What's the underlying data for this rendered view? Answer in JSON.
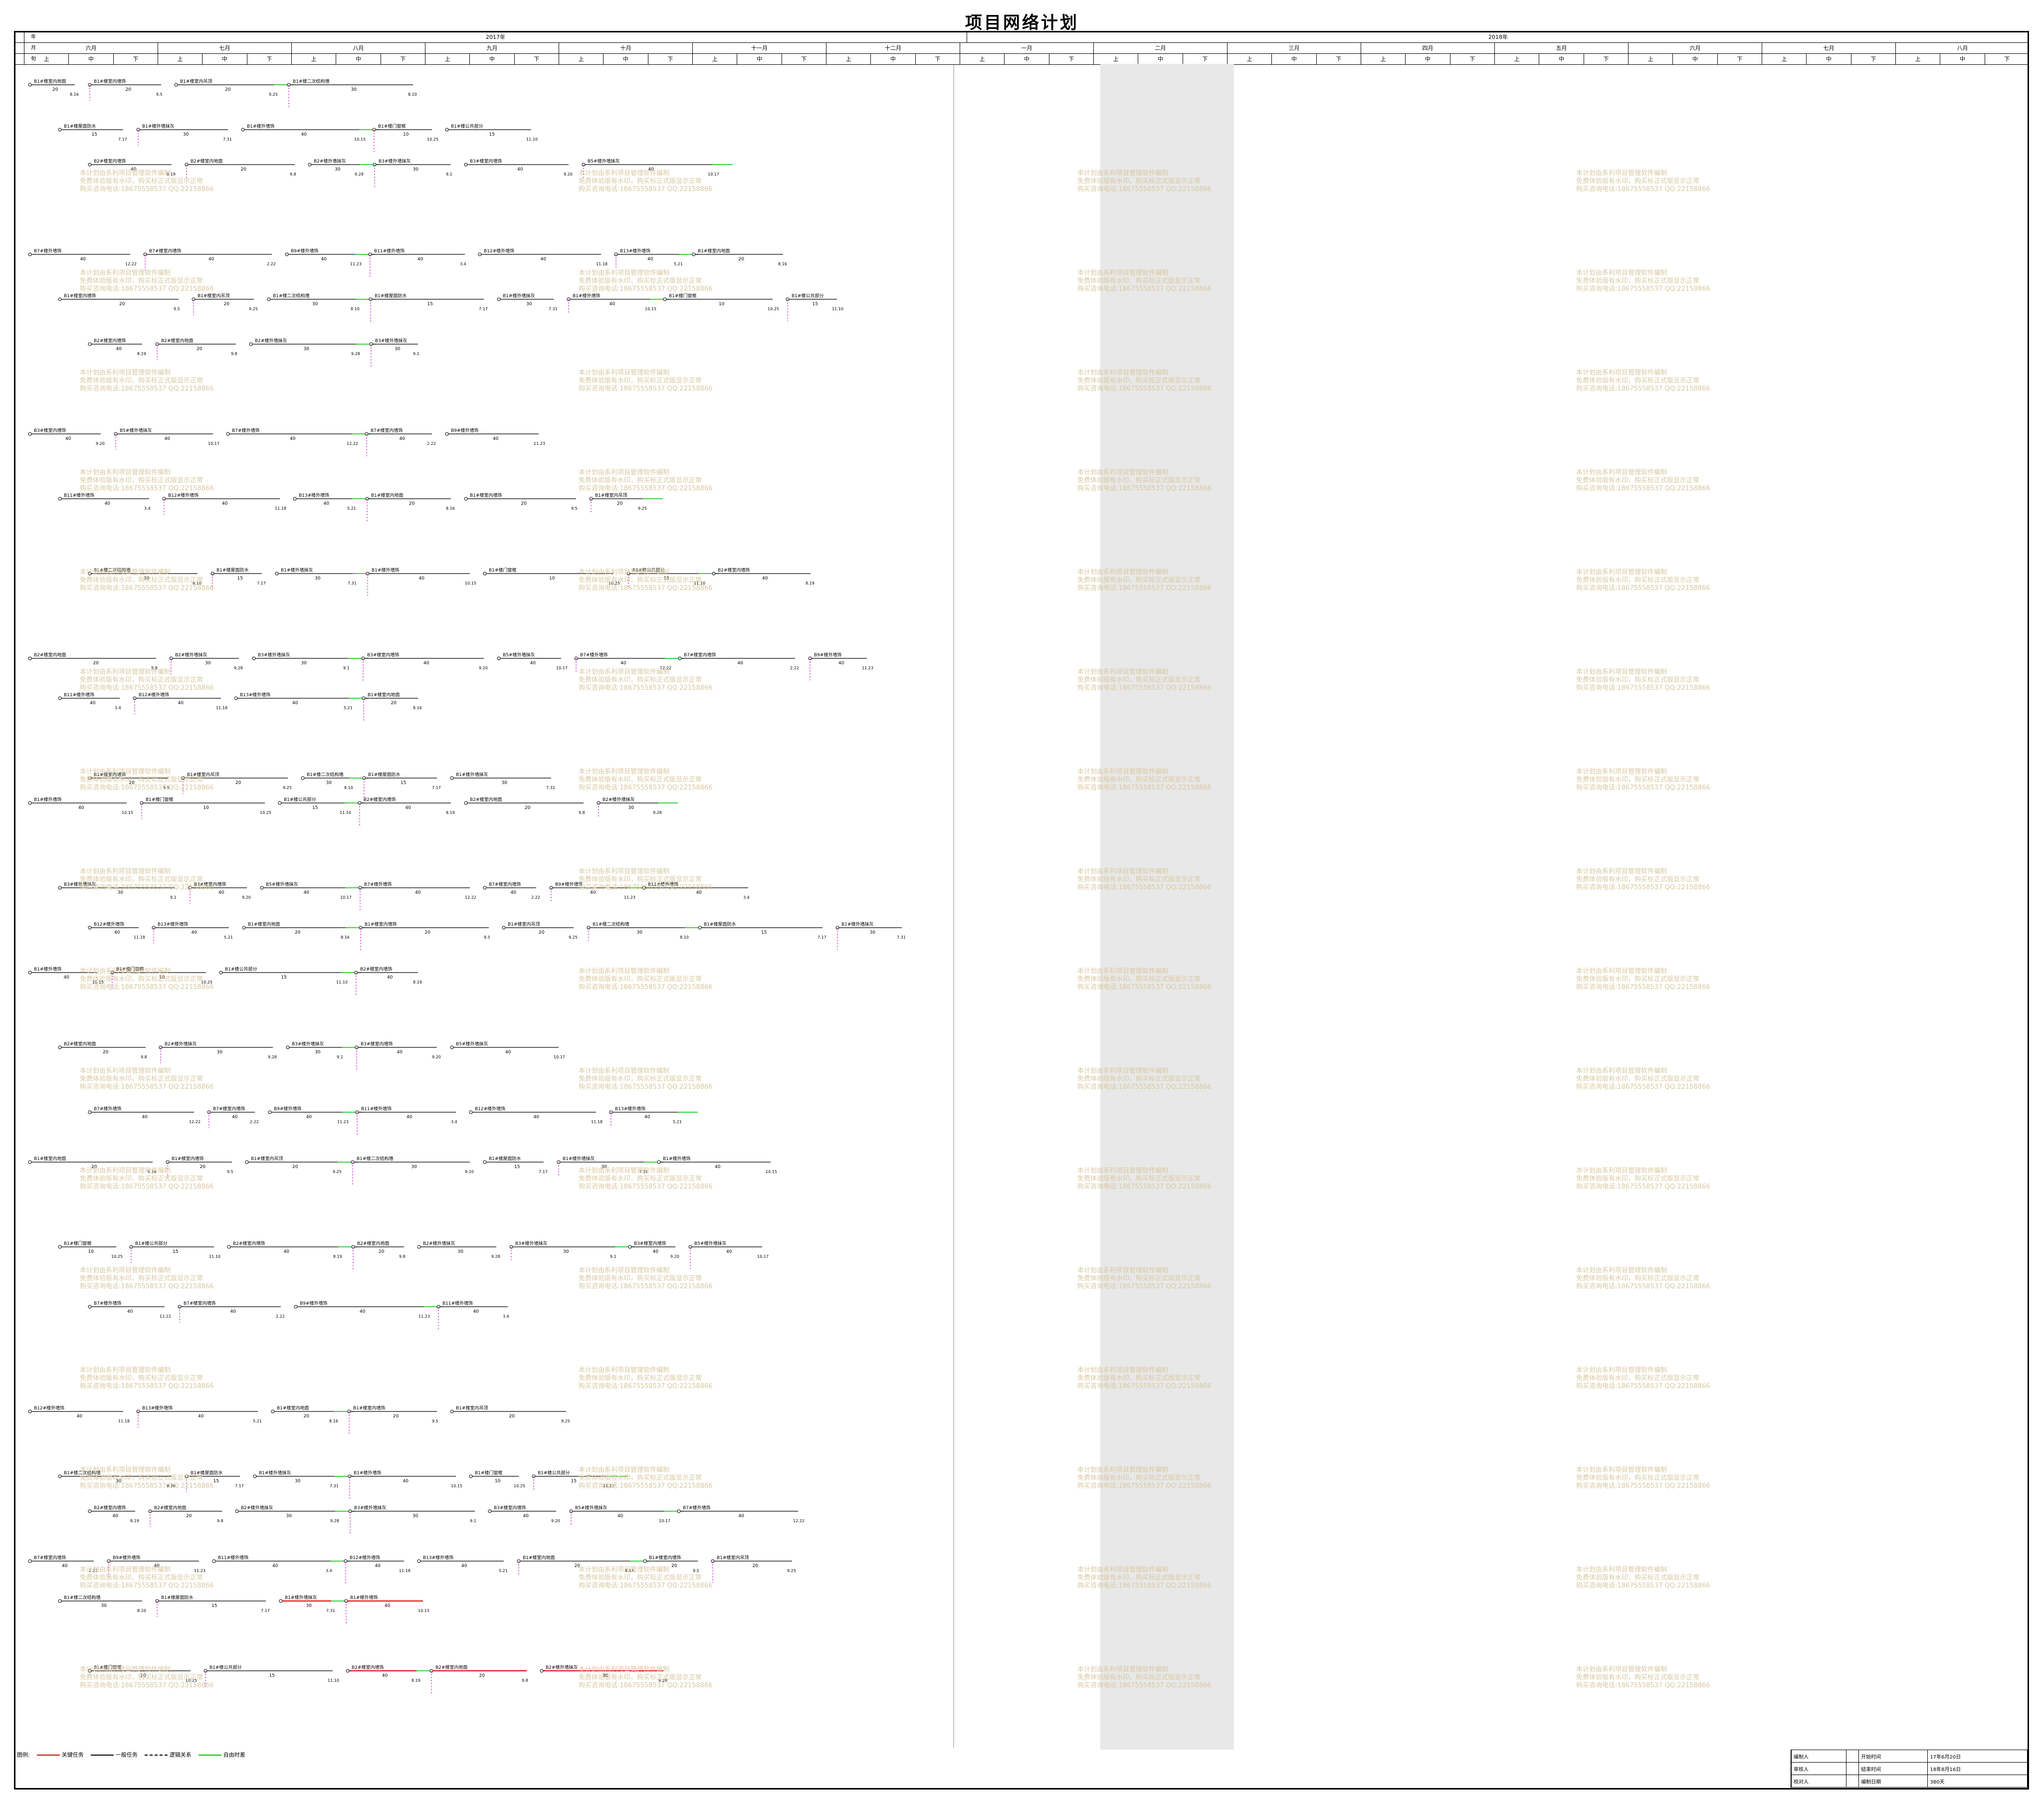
{
  "title": "项目网络计划",
  "header": {
    "row_labels": [
      "年",
      "月",
      "旬"
    ],
    "years": [
      "2017年",
      "2018年"
    ],
    "months": [
      "六月",
      "七月",
      "八月",
      "九月",
      "十月",
      "十一月",
      "十二月",
      "一月",
      "二月",
      "三月",
      "四月",
      "五月",
      "六月",
      "七月",
      "八月"
    ],
    "dekads": [
      "上",
      "中",
      "下"
    ]
  },
  "legend": {
    "title": "图例:",
    "items": [
      {
        "label": "关键任务",
        "color": "#e00000"
      },
      {
        "label": "一般任务",
        "color": "#000000"
      },
      {
        "label": "逻辑关系",
        "color": "#000000"
      },
      {
        "label": "自由时差",
        "color": "#00c000"
      }
    ]
  },
  "info": {
    "rows": [
      [
        "编制人",
        "",
        "开始时间",
        "17年6月20日"
      ],
      [
        "审核人",
        "",
        "结束时间",
        "18年8月16日"
      ],
      [
        "校对人",
        "",
        "编制日期",
        "380天"
      ]
    ]
  },
  "watermark": [
    "本计划由系利项目管理软件编制",
    "免费体验版有水印，购买标正式版显示正常",
    "购买咨询电话:18675558537 QQ:22158866"
  ],
  "chart_data": {
    "type": "network",
    "tasks": [
      {
        "name": "B1#楼室内地面",
        "duration": 20,
        "date": "8.16"
      },
      {
        "name": "B1#楼室内墙饰",
        "duration": 20,
        "date": "9.5"
      },
      {
        "name": "B1#楼室内吊顶",
        "duration": 20,
        "date": "9.25"
      },
      {
        "name": "B1#楼二次结构墙",
        "duration": 30,
        "date": "8.10"
      },
      {
        "name": "B1#楼屋面防水",
        "duration": 15,
        "date": "7.17"
      },
      {
        "name": "B1#楼外墙抹灰",
        "duration": 30,
        "date": "7.31"
      },
      {
        "name": "B1#楼外墙饰",
        "duration": 40,
        "date": "10.15"
      },
      {
        "name": "B1#楼门窗框",
        "duration": 10,
        "date": "10.25"
      },
      {
        "name": "B1#楼公共部分",
        "duration": 15,
        "date": "11.10"
      },
      {
        "name": "B2#楼室内墙饰",
        "duration": 40,
        "date": "8.19"
      },
      {
        "name": "B2#楼室内地面",
        "duration": 20,
        "date": "9.8"
      },
      {
        "name": "B2#楼外墙抹灰",
        "duration": 30,
        "date": "9.28"
      },
      {
        "name": "B3#楼外墙抹灰",
        "duration": 30,
        "date": "9.1"
      },
      {
        "name": "B3#楼室内墙饰",
        "duration": 40,
        "date": "9.20"
      },
      {
        "name": "B5#楼外墙抹灰",
        "duration": 40,
        "date": "10.17"
      },
      {
        "name": "B7#楼外墙饰",
        "duration": 40,
        "date": "12.22"
      },
      {
        "name": "B7#楼室内墙饰",
        "duration": 40,
        "date": "2.22"
      },
      {
        "name": "B9#楼外墙饰",
        "duration": 40,
        "date": "11.23"
      },
      {
        "name": "B11#楼外墙饰",
        "duration": 40,
        "date": "3.4"
      },
      {
        "name": "B12#楼外墙饰",
        "duration": 40,
        "date": "11.18"
      },
      {
        "name": "B13#楼外墙饰",
        "duration": 40,
        "date": "5.21"
      }
    ],
    "start": "17年6月20日",
    "end": "18年8月16日",
    "total_days": 380
  }
}
